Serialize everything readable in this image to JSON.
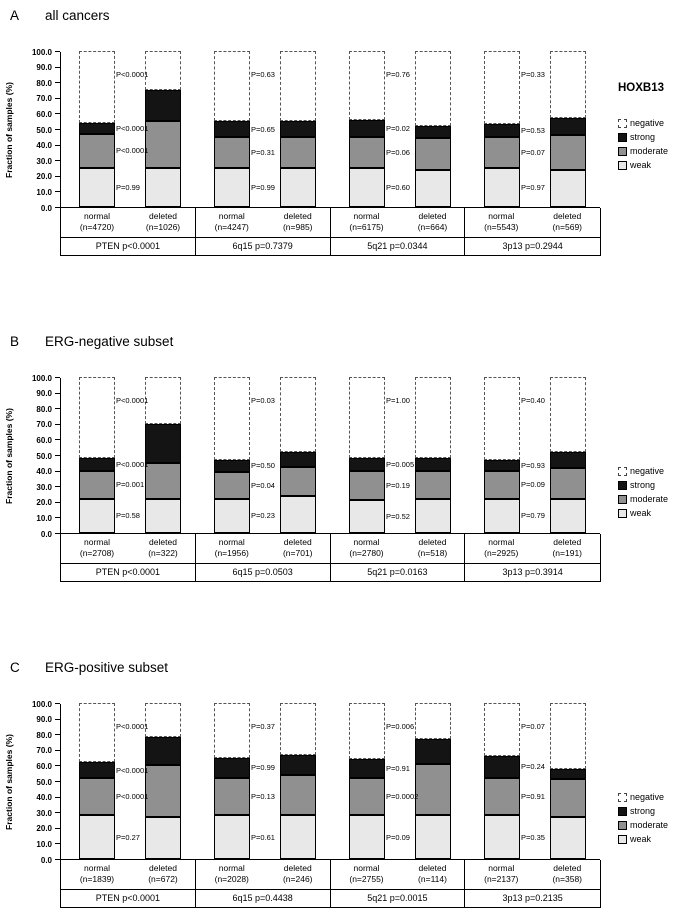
{
  "figure": {
    "y_axis_label": "Fraction of samples (%)",
    "legend_title": "HOXB13",
    "legend_items": [
      {
        "label": "negative",
        "dashed": true,
        "color": "#ffffff"
      },
      {
        "label": "strong",
        "dashed": false,
        "color": "#141414"
      },
      {
        "label": "moderate",
        "dashed": false,
        "color": "#909090"
      },
      {
        "label": "weak",
        "dashed": false,
        "color": "#e8e8e8"
      }
    ],
    "colors": {
      "weak": "#e8e8e8",
      "moderate": "#909090",
      "strong": "#141414",
      "negative": "#ffffff"
    }
  },
  "chart_data": [
    {
      "type": "bar",
      "stacked": true,
      "panel_letter": "A",
      "title": "all cancers",
      "ylabel": "Fraction of samples (%)",
      "ylim": [
        0,
        100
      ],
      "yticks": [
        0,
        10,
        20,
        30,
        40,
        50,
        60,
        70,
        80,
        90,
        100
      ],
      "legend_title": "HOXB13",
      "groups": [
        {
          "label": "PTEN p<0.0001",
          "bars": [
            {
              "label": "normal",
              "n": "(n=4720)",
              "weak": 25,
              "moderate": 22,
              "strong": 7
            },
            {
              "label": "deleted",
              "n": "(n=1026)",
              "weak": 25,
              "moderate": 30,
              "strong": 20
            }
          ],
          "p_values": {
            "negative": "P<0.0001",
            "strong": "P<0.0001",
            "moderate": "P<0.0001",
            "weak": "P=0.99"
          }
        },
        {
          "label": "6q15 p=0.7379",
          "bars": [
            {
              "label": "normal",
              "n": "(n=4247)",
              "weak": 25,
              "moderate": 20,
              "strong": 10
            },
            {
              "label": "deleted",
              "n": "(n=985)",
              "weak": 25,
              "moderate": 20,
              "strong": 10
            }
          ],
          "p_values": {
            "negative": "P=0.63",
            "strong": "P=0.65",
            "moderate": "P=0.31",
            "weak": "P=0.99"
          }
        },
        {
          "label": "5q21 p=0.0344",
          "bars": [
            {
              "label": "normal",
              "n": "(n=6175)",
              "weak": 25,
              "moderate": 20,
              "strong": 11
            },
            {
              "label": "deleted",
              "n": "(n=664)",
              "weak": 24,
              "moderate": 20,
              "strong": 8
            }
          ],
          "p_values": {
            "negative": "P=0.76",
            "strong": "P=0.02",
            "moderate": "P=0.06",
            "weak": "P=0.60"
          }
        },
        {
          "label": "3p13 p=0.2944",
          "bars": [
            {
              "label": "normal",
              "n": "(n=5543)",
              "weak": 25,
              "moderate": 20,
              "strong": 8
            },
            {
              "label": "deleted",
              "n": "(n=569)",
              "weak": 24,
              "moderate": 22,
              "strong": 11
            }
          ],
          "p_values": {
            "negative": "P=0.33",
            "strong": "P=0.53",
            "moderate": "P=0.07",
            "weak": "P=0.97"
          }
        }
      ]
    },
    {
      "type": "bar",
      "stacked": true,
      "panel_letter": "B",
      "title": "ERG-negative subset",
      "ylabel": "Fraction of samples (%)",
      "ylim": [
        0,
        100
      ],
      "yticks": [
        0,
        10,
        20,
        30,
        40,
        50,
        60,
        70,
        80,
        90,
        100
      ],
      "legend_title": "",
      "groups": [
        {
          "label": "PTEN p<0.0001",
          "bars": [
            {
              "label": "normal",
              "n": "(n=2708)",
              "weak": 22,
              "moderate": 18,
              "strong": 8
            },
            {
              "label": "deleted",
              "n": "(n=322)",
              "weak": 22,
              "moderate": 23,
              "strong": 25
            }
          ],
          "p_values": {
            "negative": "P<0.0001",
            "strong": "P<0.0001",
            "moderate": "P=0.001",
            "weak": "P=0.58"
          }
        },
        {
          "label": "6q15 p=0.0503",
          "bars": [
            {
              "label": "normal",
              "n": "(n=1956)",
              "weak": 22,
              "moderate": 17,
              "strong": 8
            },
            {
              "label": "deleted",
              "n": "(n=701)",
              "weak": 24,
              "moderate": 18,
              "strong": 10
            }
          ],
          "p_values": {
            "negative": "P=0.03",
            "strong": "P=0.50",
            "moderate": "P=0.04",
            "weak": "P=0.23"
          }
        },
        {
          "label": "5q21 p=0.0163",
          "bars": [
            {
              "label": "normal",
              "n": "(n=2780)",
              "weak": 21,
              "moderate": 19,
              "strong": 8
            },
            {
              "label": "deleted",
              "n": "(n=518)",
              "weak": 22,
              "moderate": 18,
              "strong": 8
            }
          ],
          "p_values": {
            "negative": "P=1.00",
            "strong": "P=0.005",
            "moderate": "P=0.19",
            "weak": "P=0.52"
          }
        },
        {
          "label": "3p13 p=0.3914",
          "bars": [
            {
              "label": "normal",
              "n": "(n=2925)",
              "weak": 22,
              "moderate": 18,
              "strong": 7
            },
            {
              "label": "deleted",
              "n": "(n=191)",
              "weak": 22,
              "moderate": 20,
              "strong": 10
            }
          ],
          "p_values": {
            "negative": "P=0.40",
            "strong": "P=0.93",
            "moderate": "P=0.09",
            "weak": "P=0.79"
          }
        }
      ]
    },
    {
      "type": "bar",
      "stacked": true,
      "panel_letter": "C",
      "title": "ERG-positive subset",
      "ylabel": "Fraction of samples (%)",
      "ylim": [
        0,
        100
      ],
      "yticks": [
        0,
        10,
        20,
        30,
        40,
        50,
        60,
        70,
        80,
        90,
        100
      ],
      "legend_title": "",
      "groups": [
        {
          "label": "PTEN p<0.0001",
          "bars": [
            {
              "label": "normal",
              "n": "(n=1839)",
              "weak": 28,
              "moderate": 24,
              "strong": 10
            },
            {
              "label": "deleted",
              "n": "(n=672)",
              "weak": 27,
              "moderate": 33,
              "strong": 18
            }
          ],
          "p_values": {
            "negative": "P<0.0001",
            "strong": "P<0.0001",
            "moderate": "P<0.0001",
            "weak": "P=0.27"
          }
        },
        {
          "label": "6q15 p=0.4438",
          "bars": [
            {
              "label": "normal",
              "n": "(n=2028)",
              "weak": 28,
              "moderate": 24,
              "strong": 13
            },
            {
              "label": "deleted",
              "n": "(n=246)",
              "weak": 28,
              "moderate": 26,
              "strong": 13
            }
          ],
          "p_values": {
            "negative": "P=0.37",
            "strong": "P=0.99",
            "moderate": "P=0.13",
            "weak": "P=0.61"
          }
        },
        {
          "label": "5q21 p=0.0015",
          "bars": [
            {
              "label": "normal",
              "n": "(n=2755)",
              "weak": 28,
              "moderate": 24,
              "strong": 12
            },
            {
              "label": "deleted",
              "n": "(n=114)",
              "weak": 28,
              "moderate": 33,
              "strong": 16
            }
          ],
          "p_values": {
            "negative": "P=0.006",
            "strong": "P=0.91",
            "moderate": "P=0.0002",
            "weak": "P=0.09"
          }
        },
        {
          "label": "3p13 p=0.2135",
          "bars": [
            {
              "label": "normal",
              "n": "(n=2137)",
              "weak": 28,
              "moderate": 24,
              "strong": 14
            },
            {
              "label": "deleted",
              "n": "(n=358)",
              "weak": 27,
              "moderate": 24,
              "strong": 7
            }
          ],
          "p_values": {
            "negative": "P=0.07",
            "strong": "P=0.24",
            "moderate": "P=0.91",
            "weak": "P=0.35"
          }
        }
      ]
    }
  ]
}
